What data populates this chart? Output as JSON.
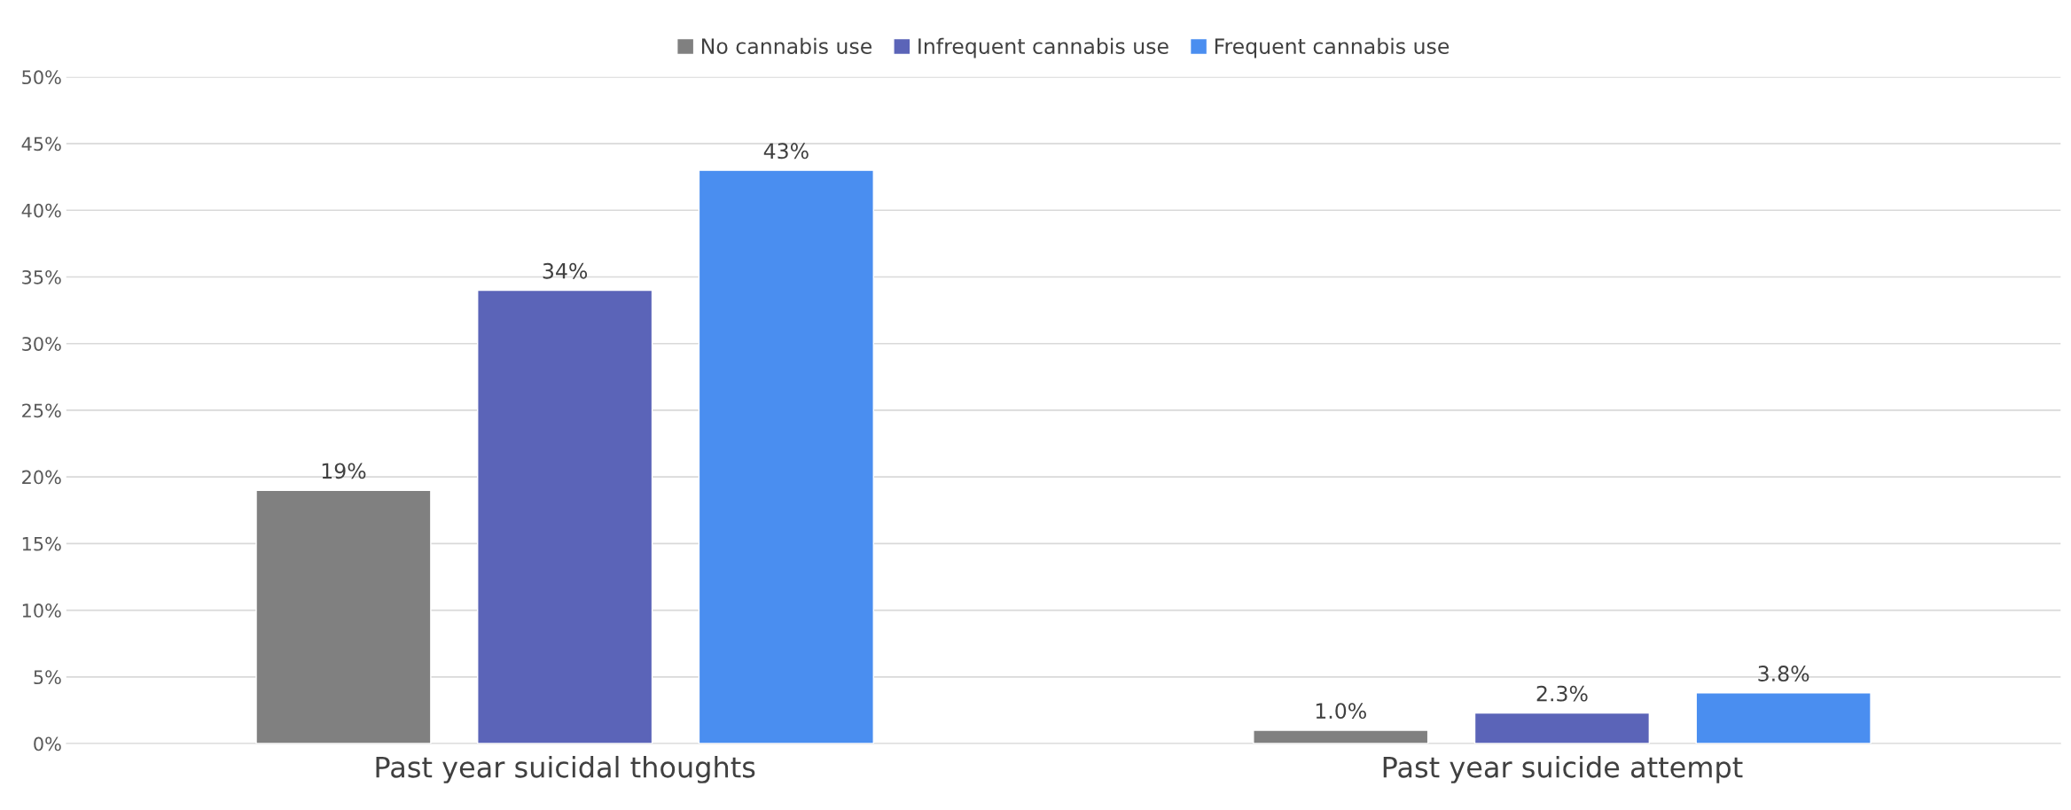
{
  "chart_data": {
    "type": "bar",
    "categories": [
      "Past year suicidal thoughts",
      "Past year suicide attempt"
    ],
    "series": [
      {
        "name": "No cannabis use",
        "color": "#808080",
        "values": [
          19,
          1.0
        ],
        "value_labels": [
          "19%",
          "1.0%"
        ]
      },
      {
        "name": "Infrequent cannabis use",
        "color": "#5b64b8",
        "values": [
          34,
          2.3
        ],
        "value_labels": [
          "34%",
          "2.3%"
        ]
      },
      {
        "name": "Frequent cannabis use",
        "color": "#4a8ef0",
        "values": [
          43,
          3.8
        ],
        "value_labels": [
          "43%",
          "3.8%"
        ]
      }
    ],
    "ylim": [
      0,
      50
    ],
    "yticks": [
      {
        "value": 0,
        "label": "0%"
      },
      {
        "value": 5,
        "label": "5%"
      },
      {
        "value": 10,
        "label": "10%"
      },
      {
        "value": 15,
        "label": "15%"
      },
      {
        "value": 20,
        "label": "20%"
      },
      {
        "value": 25,
        "label": "25%"
      },
      {
        "value": 30,
        "label": "30%"
      },
      {
        "value": 35,
        "label": "35%"
      },
      {
        "value": 40,
        "label": "40%"
      },
      {
        "value": 45,
        "label": "45%"
      },
      {
        "value": 50,
        "label": "50%"
      }
    ],
    "grid": "y",
    "legend": "top"
  }
}
